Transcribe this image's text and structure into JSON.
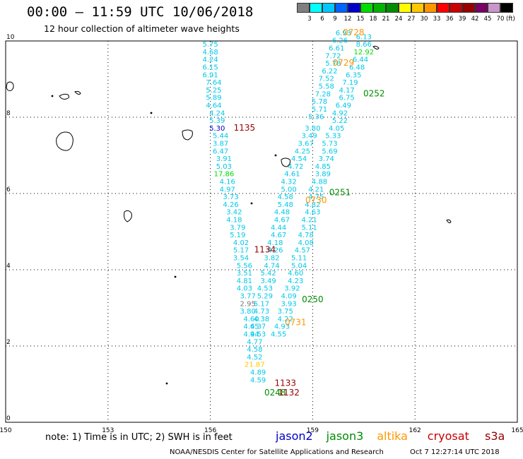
{
  "header": {
    "title": "00:00 – 11:59 UTC 10/06/2018",
    "subtitle": "12 hour collection of altimeter wave heights"
  },
  "legend": {
    "unit": "(ft)",
    "bins": [
      {
        "label": "",
        "color": "#7f7f7f"
      },
      {
        "label": "3",
        "color": "#00ffff"
      },
      {
        "label": "6",
        "color": "#00c8ff"
      },
      {
        "label": "9",
        "color": "#0064ff"
      },
      {
        "label": "12",
        "color": "#0000c8"
      },
      {
        "label": "15",
        "color": "#00dc00"
      },
      {
        "label": "18",
        "color": "#00b400"
      },
      {
        "label": "21",
        "color": "#008c00"
      },
      {
        "label": "24",
        "color": "#ffff00"
      },
      {
        "label": "27",
        "color": "#ffc800"
      },
      {
        "label": "30",
        "color": "#ff9600"
      },
      {
        "label": "33",
        "color": "#ff0000"
      },
      {
        "label": "36",
        "color": "#c80000"
      },
      {
        "label": "39",
        "color": "#960000"
      },
      {
        "label": "42",
        "color": "#780064"
      },
      {
        "label": "45",
        "color": "#c896c8"
      },
      {
        "label": "70",
        "color": "#000000"
      }
    ]
  },
  "axes": {
    "x_ticks": [
      "150",
      "153",
      "156",
      "159",
      "162",
      "165"
    ],
    "y_ticks": [
      "0",
      "2",
      "4",
      "6",
      "8",
      "10"
    ]
  },
  "tracks": [
    {
      "name": "left-track",
      "color": "#00c8e8",
      "points": [
        [
          156.0,
          9.85,
          "5.75"
        ],
        [
          156.0,
          9.65,
          "4.68"
        ],
        [
          156.0,
          9.45,
          "4.24"
        ],
        [
          156.0,
          9.25,
          "6.15"
        ],
        [
          156.0,
          9.05,
          "6.91"
        ],
        [
          156.1,
          8.85,
          "7.64"
        ],
        [
          156.1,
          8.65,
          "5.25"
        ],
        [
          156.1,
          8.45,
          "5.89"
        ],
        [
          156.1,
          8.25,
          "4.64"
        ],
        [
          156.2,
          8.05,
          "4.24"
        ],
        [
          156.2,
          7.85,
          "5.39"
        ],
        [
          156.2,
          7.65,
          "5.30"
        ],
        [
          156.3,
          7.45,
          "5.44"
        ],
        [
          156.3,
          7.25,
          "3.87"
        ],
        [
          156.3,
          7.05,
          "6.47"
        ],
        [
          156.4,
          6.85,
          "3.91"
        ],
        [
          156.4,
          6.65,
          "5.03"
        ],
        [
          156.4,
          6.45,
          "17.86"
        ],
        [
          156.5,
          6.25,
          "4.16"
        ],
        [
          156.5,
          6.05,
          "4.97"
        ],
        [
          156.6,
          5.85,
          "3.73"
        ],
        [
          156.6,
          5.65,
          "4.26"
        ],
        [
          156.7,
          5.45,
          "3.42"
        ],
        [
          156.7,
          5.25,
          "4.18"
        ],
        [
          156.8,
          5.05,
          "3.79"
        ],
        [
          156.8,
          4.85,
          "5.19"
        ],
        [
          156.9,
          4.65,
          "4.02"
        ],
        [
          156.9,
          4.45,
          "5.17"
        ],
        [
          156.9,
          4.25,
          "3.54"
        ],
        [
          157.0,
          4.05,
          "5.56"
        ],
        [
          157.0,
          3.85,
          "3.51"
        ],
        [
          157.0,
          3.65,
          "4.81"
        ],
        [
          157.0,
          3.45,
          "4.03"
        ],
        [
          157.1,
          3.25,
          "3.77"
        ],
        [
          157.1,
          3.05,
          "2.95"
        ],
        [
          157.1,
          2.85,
          "3.80"
        ],
        [
          157.2,
          2.65,
          "4.60"
        ],
        [
          157.2,
          2.45,
          "4.65"
        ],
        [
          157.2,
          2.25,
          "4.94"
        ],
        [
          157.3,
          2.05,
          "4.77"
        ],
        [
          157.3,
          1.85,
          "4.58"
        ],
        [
          157.3,
          1.65,
          "4.52"
        ],
        [
          157.3,
          1.45,
          "21.87"
        ],
        [
          157.4,
          1.25,
          "4.89"
        ],
        [
          157.4,
          1.05,
          "4.59"
        ]
      ]
    },
    {
      "name": "right-track-a",
      "color": "#00c8e8",
      "points": [
        [
          159.9,
          10.15,
          "6.93"
        ],
        [
          159.8,
          9.95,
          "6.26"
        ],
        [
          159.7,
          9.75,
          "6.61"
        ],
        [
          159.6,
          9.55,
          "7.72"
        ],
        [
          159.6,
          9.35,
          "5.78"
        ],
        [
          159.5,
          9.15,
          "6.22"
        ],
        [
          159.4,
          8.95,
          "7.52"
        ],
        [
          159.4,
          8.75,
          "5.58"
        ],
        [
          159.3,
          8.55,
          "7.28"
        ],
        [
          159.2,
          8.35,
          "5.78"
        ],
        [
          159.2,
          8.15,
          "5.71"
        ],
        [
          159.1,
          7.95,
          "5.36"
        ],
        [
          159.0,
          7.65,
          "3.80"
        ],
        [
          158.9,
          7.45,
          "3.49"
        ],
        [
          158.8,
          7.25,
          "3.67"
        ],
        [
          158.7,
          7.05,
          "4.25"
        ],
        [
          158.6,
          6.85,
          "4.54"
        ],
        [
          158.5,
          6.65,
          "4.72"
        ],
        [
          158.4,
          6.45,
          "4.61"
        ],
        [
          158.3,
          6.25,
          "4.32"
        ],
        [
          158.3,
          6.05,
          "5.00"
        ],
        [
          158.2,
          5.85,
          "4.58"
        ],
        [
          158.2,
          5.65,
          "5.48"
        ],
        [
          158.1,
          5.45,
          "4.48"
        ],
        [
          158.1,
          5.25,
          "4.67"
        ],
        [
          158.0,
          5.05,
          "4.44"
        ],
        [
          158.0,
          4.85,
          "4.67"
        ],
        [
          157.9,
          4.65,
          "4.18"
        ],
        [
          157.9,
          4.45,
          "4.26"
        ],
        [
          157.8,
          4.25,
          "3.82"
        ],
        [
          157.8,
          4.05,
          "4.74"
        ],
        [
          157.7,
          3.85,
          "5.42"
        ],
        [
          157.7,
          3.65,
          "3.49"
        ],
        [
          157.6,
          3.45,
          "4.53"
        ],
        [
          157.6,
          3.25,
          "5.29"
        ],
        [
          157.5,
          3.05,
          "5.17"
        ],
        [
          157.5,
          2.85,
          "4.73"
        ],
        [
          157.5,
          2.65,
          "4.38"
        ],
        [
          157.4,
          2.45,
          "4.37"
        ],
        [
          157.4,
          2.25,
          "4.53"
        ]
      ]
    },
    {
      "name": "right-track-b",
      "color": "#00c8e8",
      "points": [
        [
          160.5,
          10.05,
          "6.13"
        ],
        [
          160.5,
          9.85,
          "8.66"
        ],
        [
          160.4,
          9.45,
          "6.44"
        ],
        [
          160.3,
          9.25,
          "6.48"
        ],
        [
          160.2,
          9.05,
          "6.35"
        ],
        [
          160.1,
          8.85,
          "7.19"
        ],
        [
          160.0,
          8.65,
          "4.17"
        ],
        [
          160.0,
          8.45,
          "6.75"
        ],
        [
          159.9,
          8.25,
          "6.49"
        ],
        [
          159.8,
          8.05,
          "4.92"
        ],
        [
          159.8,
          7.85,
          "5.22"
        ],
        [
          159.7,
          7.65,
          "4.05"
        ],
        [
          159.6,
          7.45,
          "5.33"
        ],
        [
          159.5,
          7.25,
          "5.73"
        ],
        [
          159.5,
          7.05,
          "5.69"
        ],
        [
          159.4,
          6.85,
          "3.74"
        ],
        [
          159.3,
          6.65,
          "4.85"
        ],
        [
          159.3,
          6.45,
          "3.89"
        ],
        [
          159.2,
          6.25,
          "4.88"
        ],
        [
          159.1,
          6.05,
          "4.21"
        ],
        [
          159.1,
          5.85,
          "4.75"
        ],
        [
          159.0,
          5.65,
          "4.82"
        ],
        [
          159.0,
          5.45,
          "4.63"
        ],
        [
          158.9,
          5.25,
          "4.21"
        ],
        [
          158.9,
          5.05,
          "5.11"
        ],
        [
          158.8,
          4.85,
          "4.78"
        ],
        [
          158.8,
          4.65,
          "4.08"
        ],
        [
          158.7,
          4.45,
          "4.57"
        ],
        [
          158.6,
          4.25,
          "5.11"
        ],
        [
          158.6,
          4.05,
          "5.04"
        ],
        [
          158.5,
          3.85,
          "4.60"
        ],
        [
          158.5,
          3.65,
          "4.23"
        ],
        [
          158.4,
          3.45,
          "3.92"
        ],
        [
          158.3,
          3.25,
          "4.09"
        ],
        [
          158.3,
          3.05,
          "3.93"
        ],
        [
          158.2,
          2.85,
          "3.75"
        ],
        [
          158.2,
          2.65,
          "4.22"
        ],
        [
          158.1,
          2.45,
          "4.93"
        ],
        [
          158.0,
          2.25,
          "4.55"
        ]
      ]
    }
  ],
  "greens": [
    [
      160.5,
      9.65,
      "12.92"
    ]
  ],
  "pass_times": [
    {
      "x": 160.2,
      "y": 10.15,
      "text": "0728",
      "color": "#ff9600"
    },
    {
      "x": 159.9,
      "y": 9.35,
      "text": "0729",
      "color": "#ff9600"
    },
    {
      "x": 160.8,
      "y": 8.55,
      "text": "0252",
      "color": "#008c00"
    },
    {
      "x": 157.0,
      "y": 7.65,
      "text": "1135",
      "color": "#960000"
    },
    {
      "x": 159.8,
      "y": 5.95,
      "text": "0251",
      "color": "#008c00"
    },
    {
      "x": 159.1,
      "y": 5.75,
      "text": "0730",
      "color": "#ff9600"
    },
    {
      "x": 157.6,
      "y": 4.45,
      "text": "1134",
      "color": "#960000"
    },
    {
      "x": 159.0,
      "y": 3.15,
      "text": "0250",
      "color": "#008c00"
    },
    {
      "x": 158.5,
      "y": 2.55,
      "text": "0731",
      "color": "#ff9600"
    },
    {
      "x": 158.2,
      "y": 0.95,
      "text": "1133",
      "color": "#960000"
    },
    {
      "x": 157.9,
      "y": 0.7,
      "text": "0248",
      "color": "#008c00"
    },
    {
      "x": 158.3,
      "y": 0.7,
      "text": "1132",
      "color": "#960000"
    }
  ],
  "footer": {
    "note": "note: 1) Time is in UTC; 2) SWH is in feet",
    "satellites": [
      {
        "name": "jason2",
        "color": "#0000c8"
      },
      {
        "name": "jason3",
        "color": "#008c00"
      },
      {
        "name": "altika",
        "color": "#ff9600"
      },
      {
        "name": "cryosat",
        "color": "#c80000"
      },
      {
        "name": "s3a",
        "color": "#960000"
      }
    ],
    "credit": "NOAA/NESDIS Center for Satellite Applications and Research",
    "timestamp": "Oct  7 12:27:14 UTC 2018"
  }
}
